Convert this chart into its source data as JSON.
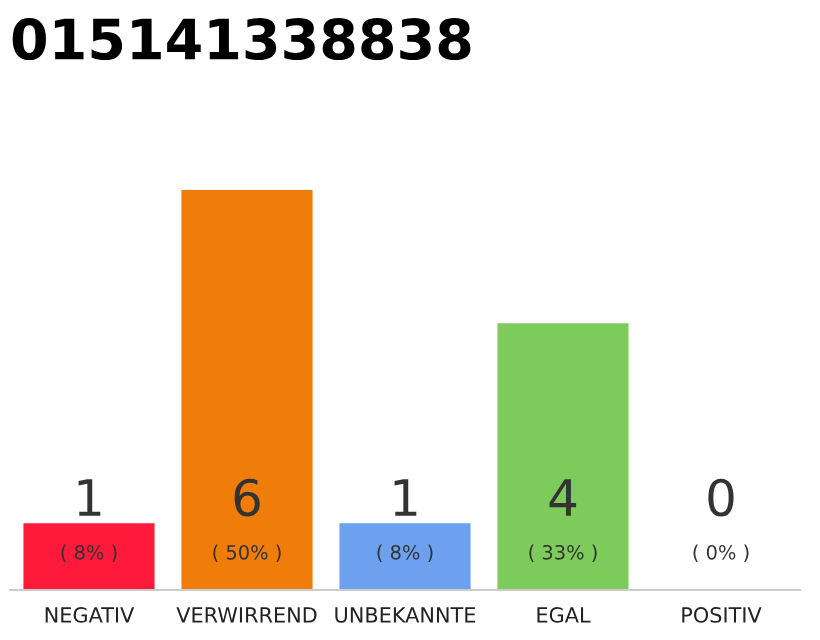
{
  "chart_data": {
    "type": "bar",
    "title": "015141338838",
    "categories": [
      "NEGATIV",
      "VERWIRREND",
      "UNBEKANNTE",
      "EGAL",
      "POSITIV"
    ],
    "values": [
      1,
      6,
      1,
      4,
      0
    ],
    "colors": [
      "#ff1a3c",
      "#f07d0a",
      "#6ea0f0",
      "#7dcb5a",
      "#cccccc"
    ],
    "value_labels": [
      "1",
      "6",
      "1",
      "4",
      "0"
    ],
    "annotations": [
      "( 8% )",
      "( 50% )",
      "( 8% )",
      "( 33% )",
      "( 0% )"
    ],
    "grid": false,
    "legend": false
  }
}
